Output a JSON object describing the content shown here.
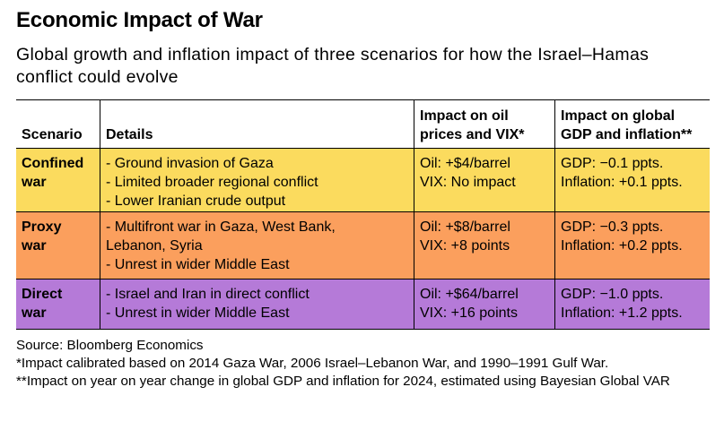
{
  "title": "Economic Impact of War",
  "subtitle": "Global growth and inflation impact of three scenarios for how the Israel–Hamas conflict could evolve",
  "table": {
    "headers": {
      "scenario": "Scenario",
      "details": "Details",
      "oil_line1": "Impact on oil",
      "oil_line2": "prices and VIX*",
      "gdp_line1": "Impact on global",
      "gdp_line2": "GDP and inflation**"
    },
    "rows": [
      {
        "scenario_line1": "Confined",
        "scenario_line2": "war",
        "color": "#fbdb5e",
        "details": [
          "- Ground invasion of Gaza",
          "- Limited broader regional conflict",
          "- Lower Iranian crude output"
        ],
        "oil": "Oil: +$4/barrel",
        "vix": "VIX: No impact",
        "gdp": "GDP: −0.1 ppts.",
        "inflation": "Inflation: +0.1 ppts."
      },
      {
        "scenario_line1": "Proxy",
        "scenario_line2": "war",
        "color": "#fb9f5d",
        "details": [
          "- Multifront war in Gaza, West Bank,",
          "Lebanon, Syria",
          "- Unrest in wider Middle East"
        ],
        "oil": "Oil: +$8/barrel",
        "vix": "VIX: +8 points",
        "gdp": "GDP: −0.3 ppts.",
        "inflation": "Inflation: +0.2 ppts."
      },
      {
        "scenario_line1": "Direct",
        "scenario_line2": "war",
        "color": "#b57ad8",
        "details": [
          "- Israel and Iran in direct conflict",
          "- Unrest in wider Middle East"
        ],
        "oil": "Oil: +$64/barrel",
        "vix": "VIX: +16 points",
        "gdp": "GDP: −1.0 ppts.",
        "inflation": "Inflation: +1.2 ppts."
      }
    ]
  },
  "notes": {
    "source": "Source: Bloomberg Economics",
    "note1": "*Impact calibrated based on 2014 Gaza War, 2006 Israel–Lebanon War, and 1990–1991 Gulf War.",
    "note2": "**Impact on year on year change in global GDP and inflation for 2024, estimated using Bayesian Global VAR"
  }
}
